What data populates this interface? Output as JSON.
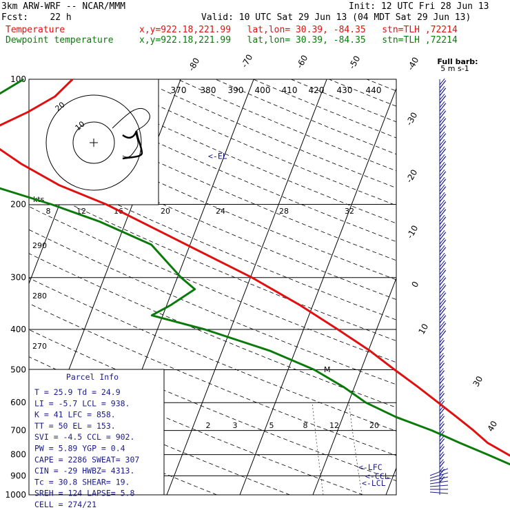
{
  "header": {
    "model": "3km ARW-WRF -- NCAR/MMM",
    "init": "Init: 12 UTC Fri 28 Jun 13",
    "fcst": "Fcst:    22 h",
    "valid": "Valid: 10 UTC Sat 29 Jun 13 (04 MDT Sat 29 Jun 13)",
    "temp_label": "Temperature",
    "temp_info": "x,y=922.18,221.99   lat,lon= 30.39, -84.35   stn=TLH ,72214",
    "dew_label": "Dewpoint temperature",
    "dew_info": "x,y=922.18,221.99   lat,lon= 30.39, -84.35   stn=TLH ,72214"
  },
  "colors": {
    "temperature": "#e01010",
    "dewpoint": "#0a7a0a",
    "barbs": "#1a1a8c",
    "parcel_text": "#1a1a8c"
  },
  "chart_data": {
    "type": "line",
    "plot": "skew-T log-P sounding",
    "pressure_levels": [
      100,
      200,
      300,
      400,
      500,
      600,
      700,
      800,
      900,
      1000
    ],
    "pressure_range": [
      100,
      1000
    ],
    "temperature_axis_ticks": [
      "-40",
      "-30",
      "-20",
      "-10",
      "0",
      "10",
      "20",
      "30",
      "40"
    ],
    "diagonal_temperature_labels": [
      "-80",
      "-70",
      "-60",
      "-50"
    ],
    "theta_e_labels": [
      "370",
      "380",
      "390",
      "400",
      "410",
      "420",
      "430",
      "440"
    ],
    "dry_adiabat_labels": [
      "290",
      "280",
      "270"
    ],
    "mixing_ratio_labels": [
      "2",
      "3",
      "5",
      "8",
      "12",
      "20"
    ],
    "hodograph_speed_labels": [
      "8",
      "12",
      "16",
      "20",
      "24",
      "28",
      "32"
    ],
    "hodograph_units": "kts",
    "hodograph_ring_labels": [
      "10",
      "20"
    ],
    "series": [
      {
        "name": "Temperature",
        "points": [
          {
            "p": 1000,
            "t": 25.9
          },
          {
            "p": 975,
            "t": 24.8
          },
          {
            "p": 950,
            "t": 24.2
          },
          {
            "p": 925,
            "t": 23.6
          },
          {
            "p": 900,
            "t": 21.9
          },
          {
            "p": 875,
            "t": 20.0
          },
          {
            "p": 850,
            "t": 18.2
          },
          {
            "p": 800,
            "t": 14.6
          },
          {
            "p": 750,
            "t": 11.2
          },
          {
            "p": 700,
            "t": 8.6
          },
          {
            "p": 650,
            "t": 5.6
          },
          {
            "p": 600,
            "t": 2.3
          },
          {
            "p": 550,
            "t": -1.3
          },
          {
            "p": 500,
            "t": -5.4
          },
          {
            "p": 450,
            "t": -9.8
          },
          {
            "p": 400,
            "t": -15.3
          },
          {
            "p": 350,
            "t": -21.7
          },
          {
            "p": 300,
            "t": -29.8
          },
          {
            "p": 250,
            "t": -40.5
          },
          {
            "p": 200,
            "t": -53.6
          },
          {
            "p": 180,
            "t": -61.0
          },
          {
            "p": 160,
            "t": -67.3
          },
          {
            "p": 140,
            "t": -73.4
          },
          {
            "p": 130,
            "t": -72.6
          },
          {
            "p": 120,
            "t": -69.2
          },
          {
            "p": 110,
            "t": -66.3
          },
          {
            "p": 100,
            "t": -64.8
          }
        ]
      },
      {
        "name": "Dewpoint temperature",
        "points": [
          {
            "p": 1000,
            "t": 24.9
          },
          {
            "p": 975,
            "t": 23.9
          },
          {
            "p": 950,
            "t": 22.5
          },
          {
            "p": 925,
            "t": 19.8
          },
          {
            "p": 900,
            "t": 18.4
          },
          {
            "p": 875,
            "t": 17.2
          },
          {
            "p": 850,
            "t": 15.8
          },
          {
            "p": 800,
            "t": 11.8
          },
          {
            "p": 750,
            "t": 7.4
          },
          {
            "p": 700,
            "t": 2.9
          },
          {
            "p": 650,
            "t": -2.7
          },
          {
            "p": 600,
            "t": -7.6
          },
          {
            "p": 550,
            "t": -11.5
          },
          {
            "p": 500,
            "t": -16.4
          },
          {
            "p": 450,
            "t": -23.5
          },
          {
            "p": 400,
            "t": -33.5
          },
          {
            "p": 370,
            "t": -41.5
          },
          {
            "p": 350,
            "t": -39.5
          },
          {
            "p": 320,
            "t": -37.0
          },
          {
            "p": 300,
            "t": -39.5
          },
          {
            "p": 250,
            "t": -45.3
          },
          {
            "p": 220,
            "t": -53.6
          },
          {
            "p": 200,
            "t": -61.1
          },
          {
            "p": 180,
            "t": -70.5
          },
          {
            "p": 160,
            "t": -80.0
          },
          {
            "p": 150,
            "t": -82.7
          },
          {
            "p": 140,
            "t": -79.5
          },
          {
            "p": 120,
            "t": -76.3
          },
          {
            "p": 110,
            "t": -74.5
          },
          {
            "p": 100,
            "t": -71.5
          }
        ]
      }
    ],
    "level_markers": [
      {
        "label": "<-EL",
        "p": 153
      },
      {
        "label": "<-LFC",
        "p": 858
      },
      {
        "label": "<-CCL",
        "p": 902
      },
      {
        "label": "<-LCL",
        "p": 938
      }
    ],
    "inset_marker": "M",
    "wind_legend": {
      "title": "Full barb:",
      "value": "5 m s-1"
    },
    "parcel_info": {
      "title": "Parcel Info",
      "rows": [
        "T   =    25.9  Td  =  24.9",
        "LI  =    -5.7  LCL =  938.",
        "K   =     41  LFC =  858.",
        "TT  =     50  EL  =  153.",
        "SVI =    -4.5  CCL =  902.",
        "PW  =    5.89  YGP =   0.4",
        "CAPE =  2286  SWEAT=  307",
        "CIN  =   -29  HWBZ= 4313.",
        "Tc  =   30.8  SHEAR=  19.",
        "SREH =   124  LAPSE=  5.8",
        "CELL = 274/21"
      ]
    }
  }
}
